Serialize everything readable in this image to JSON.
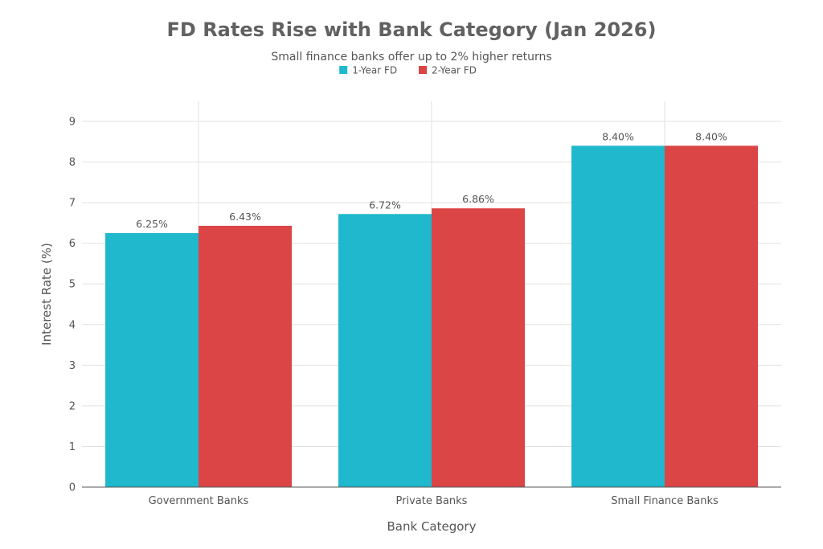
{
  "chart_data": {
    "type": "bar",
    "title": "FD Rates Rise with Bank Category (Jan 2026)",
    "subtitle": "Small finance banks offer up to 2% higher returns",
    "xlabel": "Bank Category",
    "ylabel": "Interest Rate (%)",
    "ylim": [
      0,
      9
    ],
    "yticks": [
      0,
      1,
      2,
      3,
      4,
      5,
      6,
      7,
      8,
      9
    ],
    "grid": true,
    "legend_position": "top-center",
    "categories": [
      "Government Banks",
      "Private Banks",
      "Small Finance Banks"
    ],
    "series": [
      {
        "name": "1-Year FD",
        "color": "#1fb8cd",
        "values": [
          6.25,
          6.72,
          8.4
        ],
        "labels": [
          "6.25%",
          "6.72%",
          "8.40%"
        ]
      },
      {
        "name": "2-Year FD",
        "color": "#db4545",
        "values": [
          6.43,
          6.86,
          8.4
        ],
        "labels": [
          "6.43%",
          "6.86%",
          "8.40%"
        ]
      }
    ]
  }
}
